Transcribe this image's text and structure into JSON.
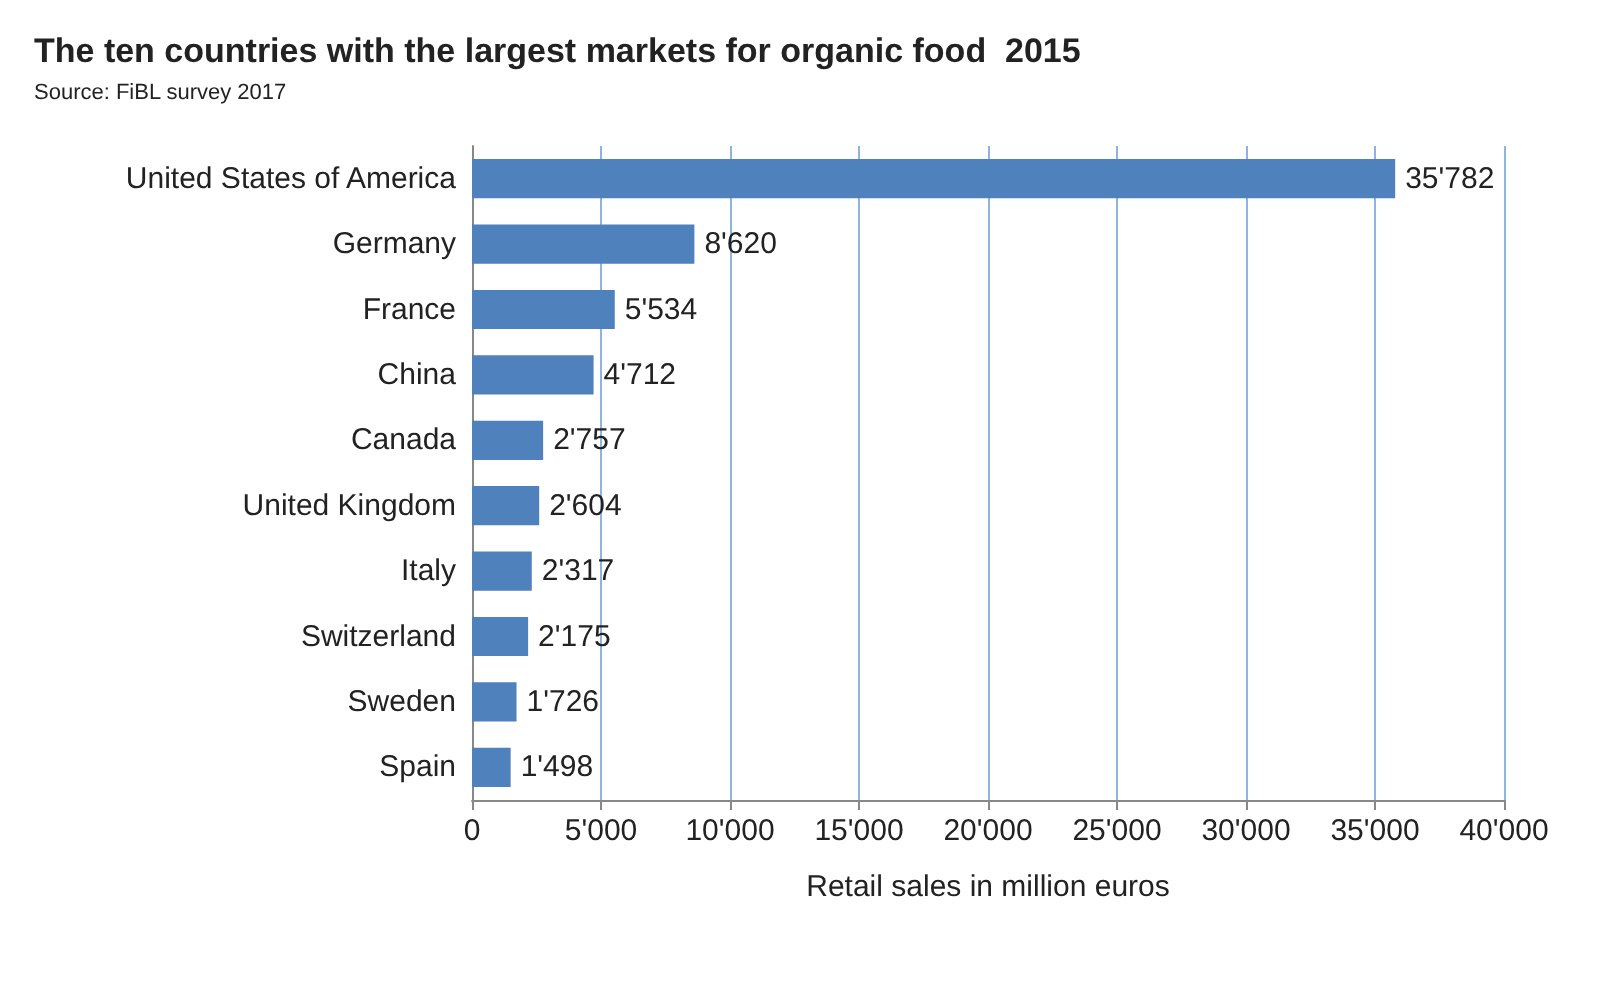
{
  "chart_data": {
    "type": "bar",
    "orientation": "horizontal",
    "title": "The ten countries with the largest markets for organic food  2015",
    "subtitle": "Source: FiBL survey 2017",
    "xlabel": "Retail sales in million euros",
    "categories": [
      "United States of America",
      "Germany",
      "France",
      "China",
      "Canada",
      "United Kingdom",
      "Italy",
      "Switzerland",
      "Sweden",
      "Spain"
    ],
    "values": [
      35782,
      8620,
      5534,
      4712,
      2757,
      2604,
      2317,
      2175,
      1726,
      1498
    ],
    "value_labels": [
      "35'782",
      "8'620",
      "5'534",
      "4'712",
      "2'757",
      "2'604",
      "2'317",
      "2'175",
      "1'726",
      "1'498"
    ],
    "color": "#4f81bd",
    "xlim": [
      0,
      40000
    ],
    "xticks": [
      0,
      {
        "value": 5000,
        "label": "5'000"
      },
      {
        "value": 10000,
        "label": "10'000"
      },
      {
        "value": 15000,
        "label": "15'000"
      },
      {
        "value": 20000,
        "label": "20'000"
      },
      {
        "value": 25000,
        "label": "25'000"
      },
      {
        "value": 30000,
        "label": "30'000"
      },
      {
        "value": 35000,
        "label": "35'000"
      },
      {
        "value": 40000,
        "label": "40'000"
      }
    ],
    "grid": "x"
  }
}
